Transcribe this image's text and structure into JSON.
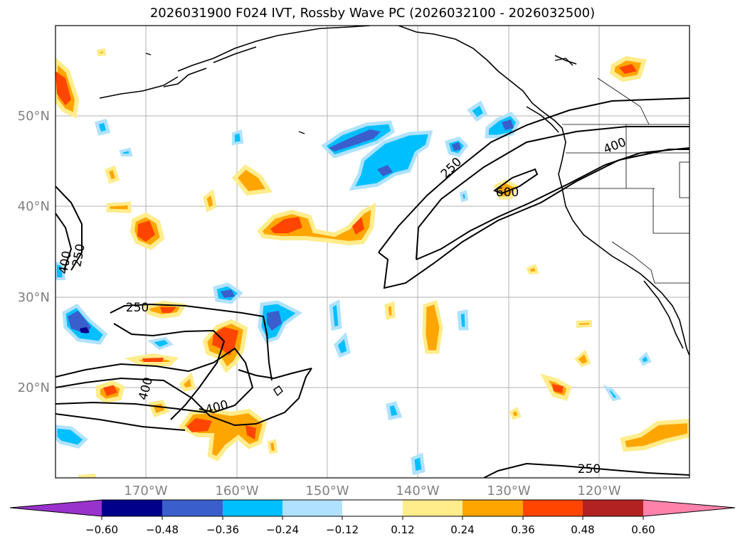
{
  "title": "2026031900 F024 IVT, Rossby Wave PC (2026032100 - 2026032500)",
  "axes": {
    "lon_ticks": [
      "170°W",
      "160°W",
      "150°W",
      "140°W",
      "130°W",
      "120°W"
    ],
    "lat_ticks": [
      "50°N",
      "40°N",
      "30°N",
      "20°N"
    ],
    "lon_range": [
      -180,
      -110
    ],
    "lat_range": [
      10,
      60
    ]
  },
  "contours": {
    "labels": [
      "250",
      "400",
      "400",
      "250",
      "250",
      "400",
      "400",
      "600",
      "250"
    ]
  },
  "colorbar": {
    "tick_labels": [
      "−0.60",
      "−0.48",
      "−0.36",
      "−0.24",
      "−0.12",
      "0.12",
      "0.24",
      "0.36",
      "0.48",
      "0.60"
    ],
    "colors": [
      "#9932cc",
      "#00008b",
      "#3a5fcd",
      "#00bfff",
      "#b0e2ff",
      "#ffffff",
      "#ffec8b",
      "#ffa500",
      "#ff4500",
      "#b22222",
      "#ff82ab"
    ]
  }
}
